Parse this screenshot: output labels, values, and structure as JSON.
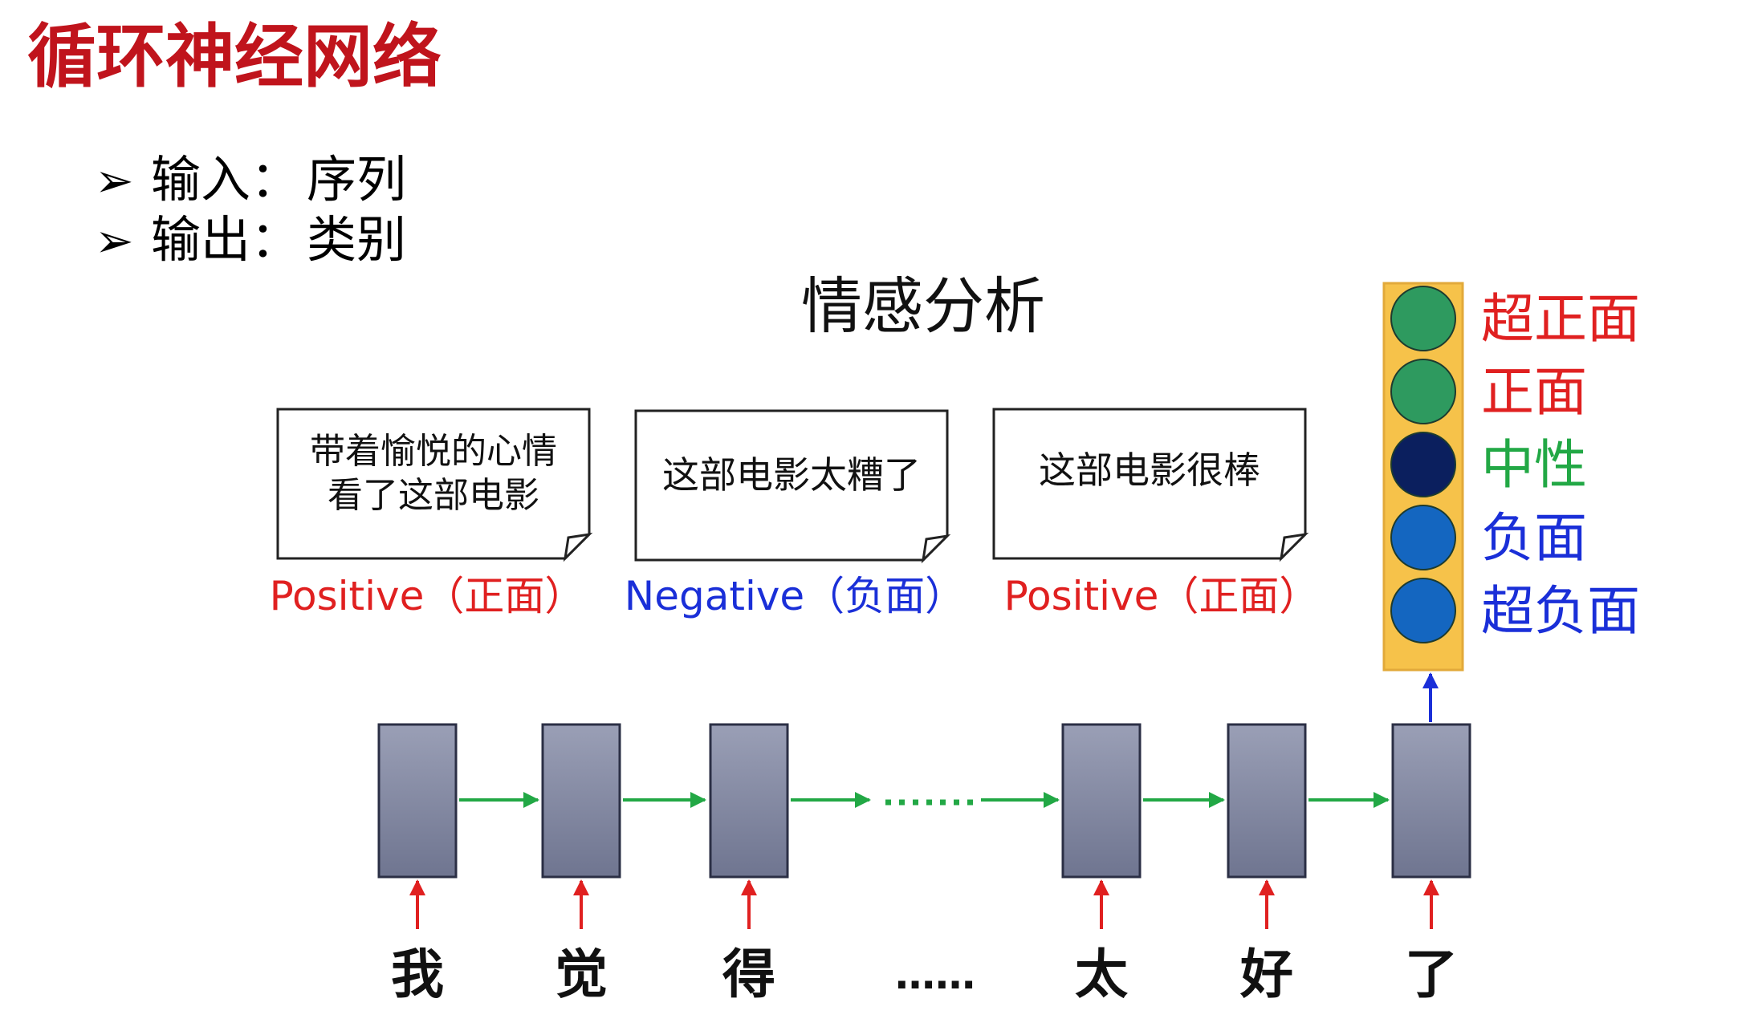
{
  "title": "循环神经网络",
  "bullets": [
    {
      "marker": "➢",
      "label": "输入：",
      "value": "序列"
    },
    {
      "marker": "➢",
      "label": "输出：",
      "value": "类别"
    }
  ],
  "diagram_title": "情感分析",
  "examples": [
    {
      "text_lines": [
        "带着愉悦的心情",
        "看了这部电影"
      ],
      "label": "Positive（正面）",
      "color": "#e02020"
    },
    {
      "text_lines": [
        "这部电影太糟了"
      ],
      "label": "Negative（负面）",
      "color": "#1a2fd8"
    },
    {
      "text_lines": [
        "这部电影很棒"
      ],
      "label": "Positive（正面）",
      "color": "#e02020"
    }
  ],
  "output_classes": [
    {
      "label": "超正面",
      "circle_color": "#2e9a5f",
      "text_color": "#e02020"
    },
    {
      "label": "正面",
      "circle_color": "#2e9a5f",
      "text_color": "#e02020"
    },
    {
      "label": "中性",
      "circle_color": "#0b1f5e",
      "text_color": "#22a845"
    },
    {
      "label": "负面",
      "circle_color": "#1466c0",
      "text_color": "#1a2fd8"
    },
    {
      "label": "超负面",
      "circle_color": "#1466c0",
      "text_color": "#1a2fd8"
    }
  ],
  "sequence_tokens": [
    "我",
    "觉",
    "得",
    "……",
    "太",
    "好",
    "了"
  ],
  "colors": {
    "title": "#c0141c",
    "recurrent_arrow": "#22a845",
    "input_arrow": "#e02020",
    "output_arrow": "#1a2fd8",
    "output_panel_fill": "#f6c24a",
    "output_panel_border": "#e2a93a"
  }
}
